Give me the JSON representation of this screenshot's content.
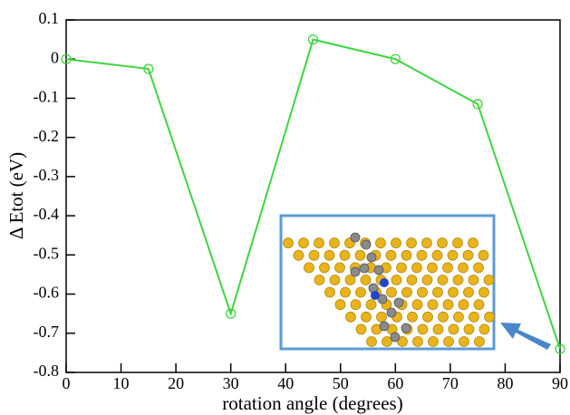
{
  "chart_data": {
    "type": "line",
    "xlabel": "rotation angle (degrees)",
    "ylabel": "Δ Etot (eV)",
    "x": [
      0,
      15,
      30,
      45,
      60,
      75,
      90
    ],
    "values": [
      0,
      -0.025,
      -0.65,
      0.05,
      0,
      -0.115,
      -0.74
    ],
    "color": "#3fd43f",
    "marker": "open-circle",
    "xlim": [
      0,
      90
    ],
    "xticks": [
      0,
      10,
      20,
      30,
      40,
      50,
      60,
      70,
      80,
      90
    ],
    "ylim": [
      -0.8,
      0.1
    ],
    "yticks": [
      0.1,
      0,
      -0.1,
      -0.2,
      -0.3,
      -0.4,
      -0.5,
      -0.6,
      -0.7,
      -0.8
    ],
    "grid": false
  }
}
